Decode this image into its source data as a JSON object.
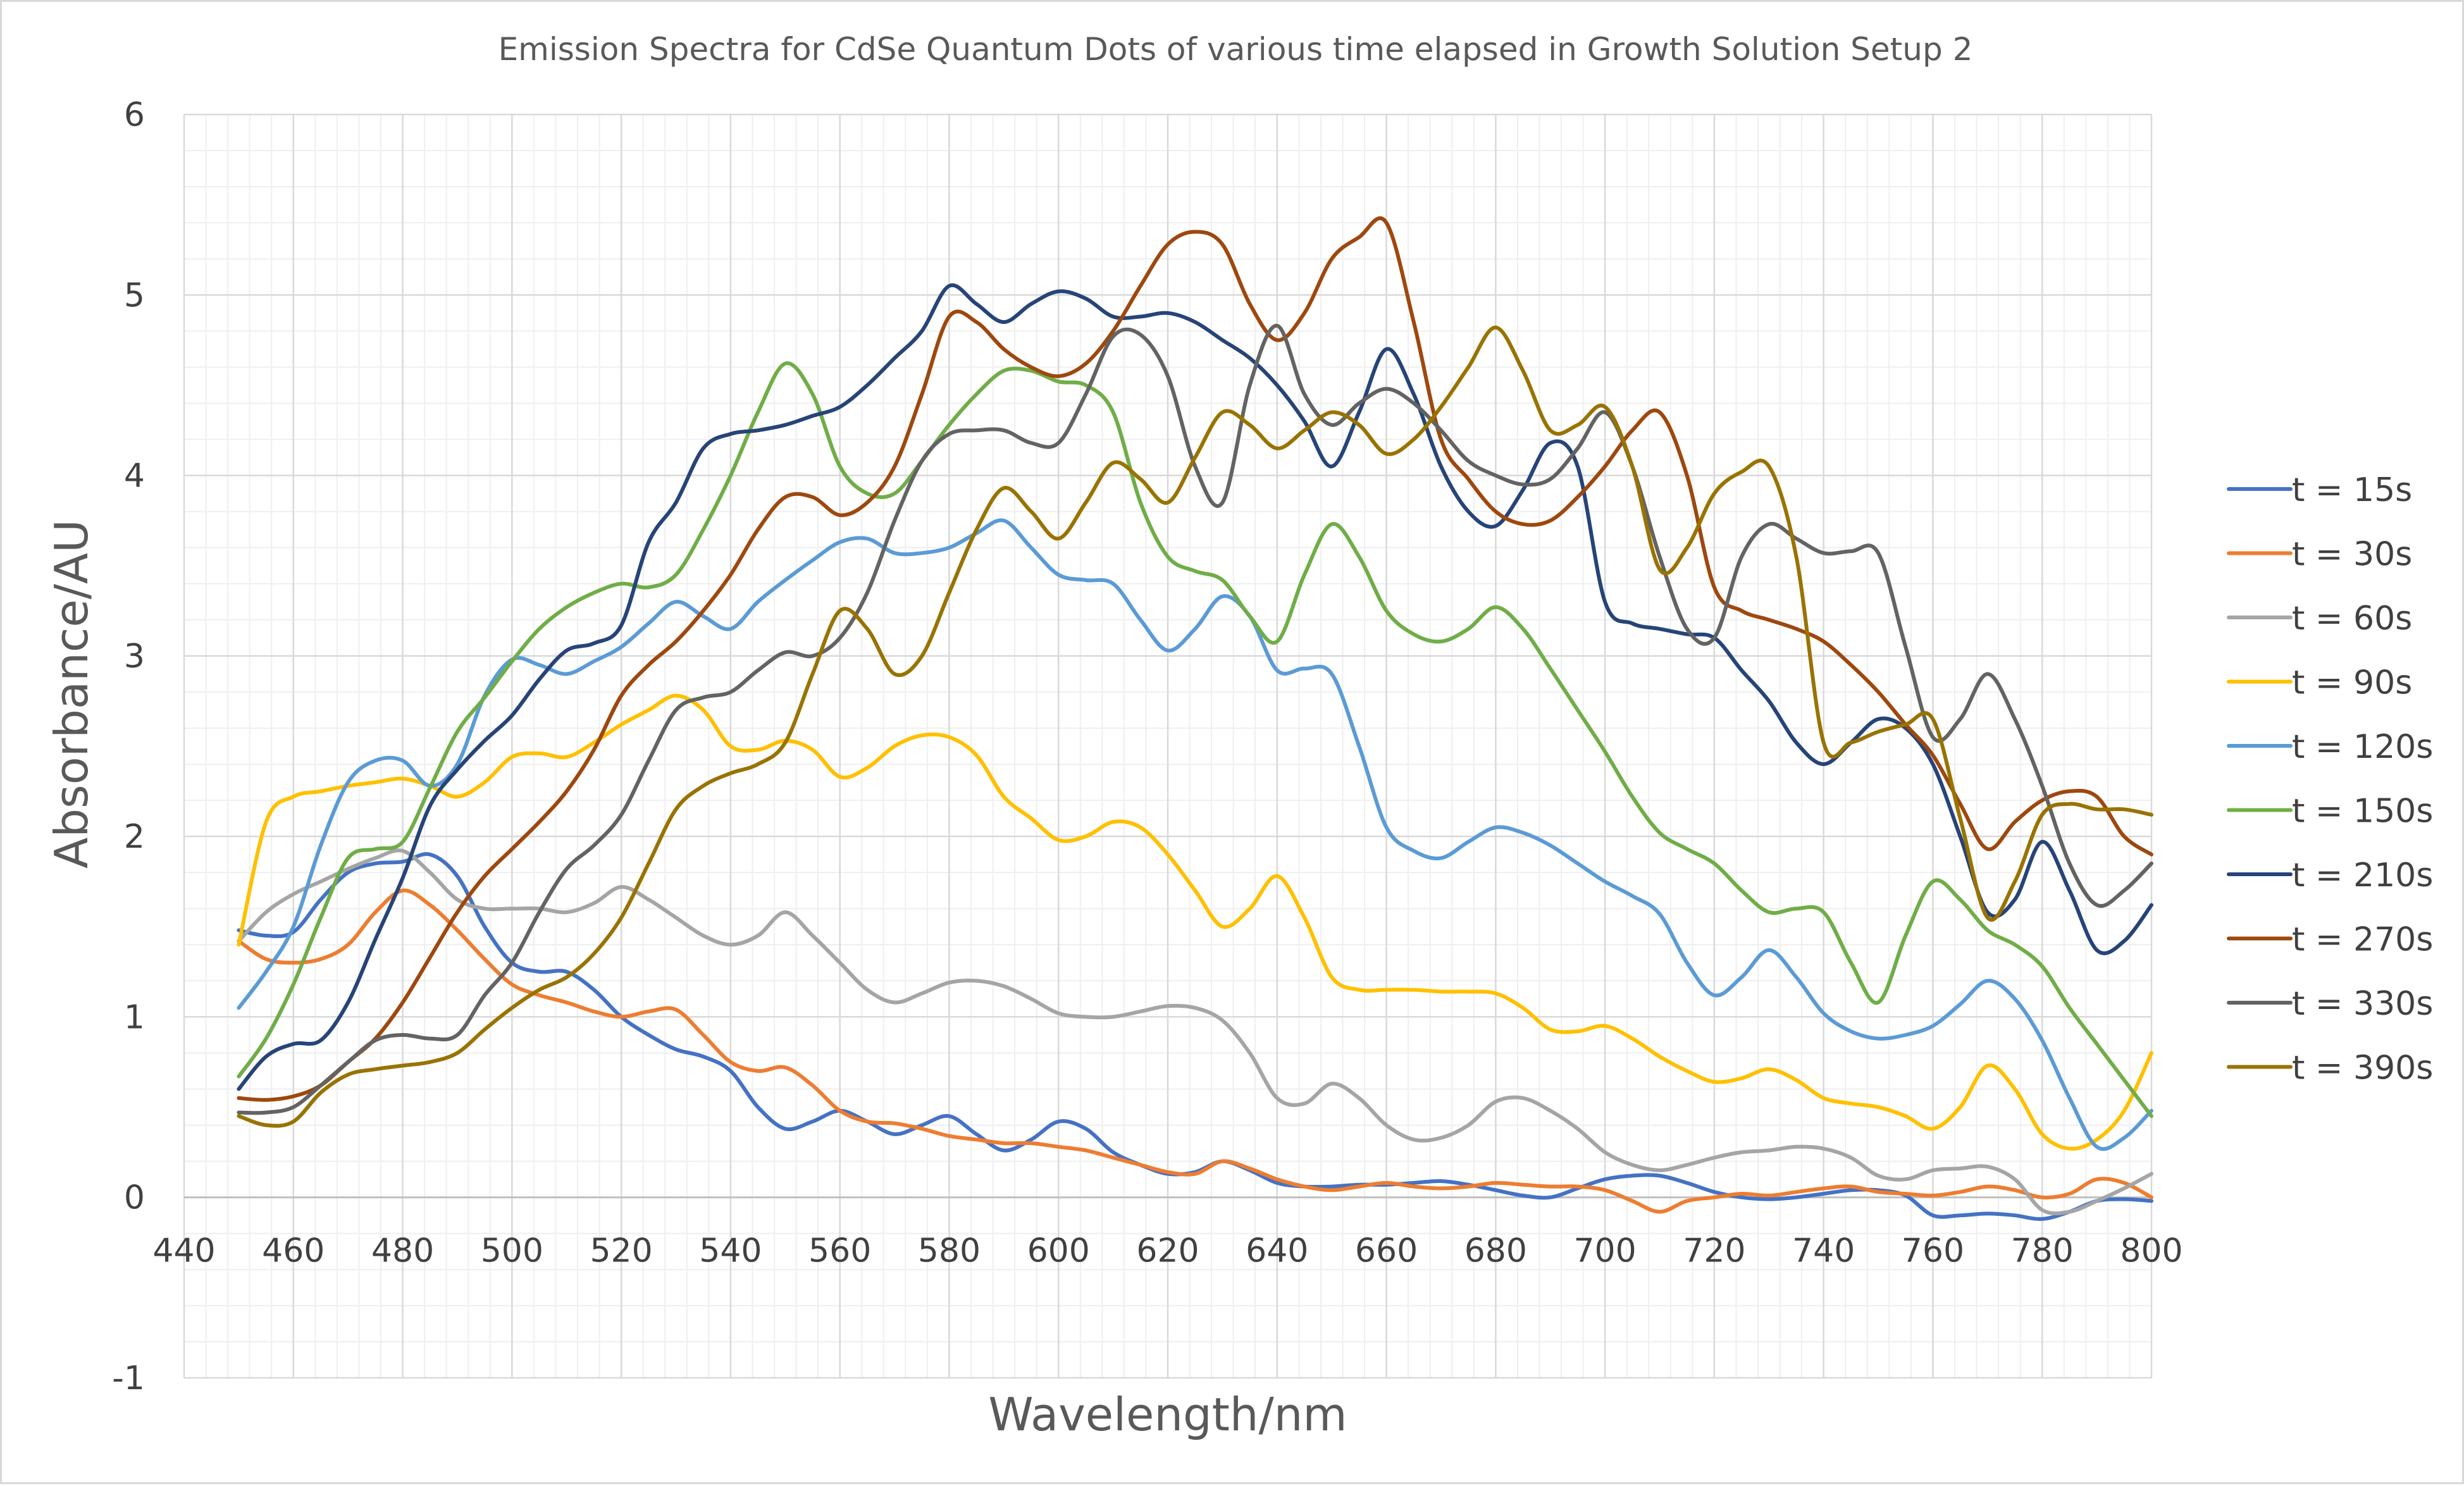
{
  "chart_data": {
    "type": "line",
    "title": "Emission Spectra for CdSe Quantum Dots of various time elapsed in Growth Solution Setup 2",
    "xlabel": "Wavelength/nm",
    "ylabel": "Absorbance/AU",
    "xlim": [
      440,
      800
    ],
    "ylim": [
      -1,
      6
    ],
    "x_ticks": [
      440,
      460,
      480,
      500,
      520,
      540,
      560,
      580,
      600,
      620,
      640,
      660,
      680,
      700,
      720,
      740,
      760,
      780,
      800
    ],
    "y_ticks": [
      -1,
      0,
      1,
      2,
      3,
      4,
      5,
      6
    ],
    "grid": "major and minor",
    "legend_position": "right",
    "x": [
      450,
      455,
      460,
      465,
      470,
      475,
      480,
      485,
      490,
      495,
      500,
      505,
      510,
      515,
      520,
      525,
      530,
      535,
      540,
      545,
      550,
      555,
      560,
      565,
      570,
      575,
      580,
      585,
      590,
      595,
      600,
      605,
      610,
      615,
      620,
      625,
      630,
      635,
      640,
      645,
      650,
      655,
      660,
      665,
      670,
      675,
      680,
      685,
      690,
      695,
      700,
      705,
      710,
      715,
      720,
      725,
      730,
      735,
      740,
      745,
      750,
      755,
      760,
      765,
      770,
      775,
      780,
      785,
      790,
      795,
      800
    ],
    "series": [
      {
        "name": "t = 15s",
        "color": "#4472C4",
        "values": [
          1.48,
          1.45,
          1.47,
          1.65,
          1.8,
          1.85,
          1.86,
          1.9,
          1.78,
          1.5,
          1.3,
          1.25,
          1.25,
          1.15,
          1.0,
          0.9,
          0.82,
          0.78,
          0.7,
          0.5,
          0.38,
          0.42,
          0.48,
          0.42,
          0.35,
          0.4,
          0.45,
          0.35,
          0.26,
          0.32,
          0.42,
          0.38,
          0.25,
          0.18,
          0.13,
          0.14,
          0.2,
          0.15,
          0.08,
          0.06,
          0.06,
          0.07,
          0.07,
          0.08,
          0.09,
          0.07,
          0.04,
          0.01,
          0.0,
          0.05,
          0.1,
          0.12,
          0.12,
          0.08,
          0.03,
          0.0,
          -0.01,
          0.0,
          0.02,
          0.04,
          0.04,
          0.01,
          -0.1,
          -0.1,
          -0.09,
          -0.1,
          -0.12,
          -0.08,
          -0.02,
          -0.01,
          -0.02
        ]
      },
      {
        "name": "t = 30s",
        "color": "#ED7D31",
        "values": [
          1.42,
          1.32,
          1.3,
          1.32,
          1.4,
          1.58,
          1.7,
          1.62,
          1.48,
          1.32,
          1.18,
          1.12,
          1.08,
          1.03,
          1.0,
          1.03,
          1.04,
          0.9,
          0.75,
          0.7,
          0.72,
          0.62,
          0.48,
          0.42,
          0.41,
          0.38,
          0.34,
          0.32,
          0.3,
          0.3,
          0.28,
          0.26,
          0.22,
          0.18,
          0.14,
          0.13,
          0.2,
          0.16,
          0.1,
          0.06,
          0.04,
          0.06,
          0.08,
          0.06,
          0.05,
          0.06,
          0.08,
          0.07,
          0.06,
          0.06,
          0.04,
          -0.02,
          -0.08,
          -0.02,
          0.0,
          0.02,
          0.01,
          0.03,
          0.05,
          0.06,
          0.03,
          0.02,
          0.01,
          0.03,
          0.06,
          0.04,
          0.0,
          0.02,
          0.1,
          0.08,
          0.0
        ]
      },
      {
        "name": "t = 60s",
        "color": "#A5A5A5",
        "values": [
          1.42,
          1.58,
          1.68,
          1.75,
          1.82,
          1.88,
          1.92,
          1.8,
          1.65,
          1.6,
          1.6,
          1.6,
          1.58,
          1.63,
          1.72,
          1.65,
          1.55,
          1.45,
          1.4,
          1.45,
          1.58,
          1.45,
          1.3,
          1.15,
          1.08,
          1.13,
          1.19,
          1.2,
          1.17,
          1.1,
          1.02,
          1.0,
          1.0,
          1.03,
          1.06,
          1.05,
          0.98,
          0.8,
          0.55,
          0.52,
          0.63,
          0.55,
          0.4,
          0.32,
          0.33,
          0.4,
          0.53,
          0.55,
          0.48,
          0.38,
          0.25,
          0.18,
          0.15,
          0.18,
          0.22,
          0.25,
          0.26,
          0.28,
          0.27,
          0.22,
          0.12,
          0.1,
          0.15,
          0.16,
          0.17,
          0.1,
          -0.07,
          -0.08,
          -0.02,
          0.05,
          0.13
        ]
      },
      {
        "name": "t = 90s",
        "color": "#FFC000",
        "values": [
          1.4,
          2.08,
          2.22,
          2.25,
          2.28,
          2.3,
          2.32,
          2.28,
          2.22,
          2.3,
          2.44,
          2.46,
          2.44,
          2.52,
          2.62,
          2.7,
          2.78,
          2.7,
          2.5,
          2.48,
          2.53,
          2.48,
          2.33,
          2.38,
          2.5,
          2.56,
          2.55,
          2.45,
          2.22,
          2.1,
          1.98,
          2.0,
          2.08,
          2.05,
          1.9,
          1.7,
          1.5,
          1.6,
          1.78,
          1.55,
          1.22,
          1.15,
          1.15,
          1.15,
          1.14,
          1.14,
          1.13,
          1.05,
          0.93,
          0.92,
          0.95,
          0.88,
          0.78,
          0.7,
          0.64,
          0.66,
          0.71,
          0.65,
          0.55,
          0.52,
          0.5,
          0.45,
          0.38,
          0.5,
          0.73,
          0.6,
          0.35,
          0.27,
          0.32,
          0.48,
          0.8
        ]
      },
      {
        "name": "t = 120s",
        "color": "#5B9BD5",
        "values": [
          1.05,
          1.25,
          1.5,
          1.95,
          2.3,
          2.42,
          2.42,
          2.28,
          2.4,
          2.78,
          2.98,
          2.95,
          2.9,
          2.97,
          3.05,
          3.18,
          3.3,
          3.22,
          3.15,
          3.3,
          3.42,
          3.53,
          3.63,
          3.65,
          3.57,
          3.57,
          3.6,
          3.68,
          3.75,
          3.6,
          3.45,
          3.42,
          3.4,
          3.2,
          3.03,
          3.15,
          3.33,
          3.22,
          2.92,
          2.93,
          2.9,
          2.5,
          2.05,
          1.92,
          1.88,
          1.97,
          2.05,
          2.02,
          1.95,
          1.85,
          1.75,
          1.67,
          1.57,
          1.3,
          1.12,
          1.22,
          1.37,
          1.22,
          1.02,
          0.92,
          0.88,
          0.9,
          0.95,
          1.07,
          1.2,
          1.1,
          0.87,
          0.55,
          0.28,
          0.33,
          0.48
        ]
      },
      {
        "name": "t = 150s",
        "color": "#70AD47",
        "values": [
          0.67,
          0.88,
          1.18,
          1.55,
          1.88,
          1.93,
          1.97,
          2.27,
          2.58,
          2.77,
          2.97,
          3.15,
          3.27,
          3.35,
          3.4,
          3.38,
          3.45,
          3.7,
          4.0,
          4.35,
          4.62,
          4.45,
          4.05,
          3.9,
          3.9,
          4.08,
          4.28,
          4.45,
          4.58,
          4.58,
          4.52,
          4.5,
          4.35,
          3.85,
          3.55,
          3.47,
          3.42,
          3.22,
          3.08,
          3.45,
          3.73,
          3.55,
          3.25,
          3.12,
          3.08,
          3.15,
          3.27,
          3.15,
          2.93,
          2.7,
          2.47,
          2.22,
          2.02,
          1.93,
          1.85,
          1.7,
          1.58,
          1.6,
          1.58,
          1.3,
          1.08,
          1.45,
          1.75,
          1.65,
          1.48,
          1.4,
          1.28,
          1.05,
          0.85,
          0.65,
          0.45
        ]
      },
      {
        "name": "t = 210s",
        "color": "#264478",
        "values": [
          0.6,
          0.78,
          0.85,
          0.87,
          1.08,
          1.43,
          1.77,
          2.17,
          2.37,
          2.53,
          2.67,
          2.87,
          3.03,
          3.07,
          3.17,
          3.63,
          3.85,
          4.15,
          4.23,
          4.25,
          4.28,
          4.33,
          4.38,
          4.5,
          4.65,
          4.8,
          5.05,
          4.95,
          4.85,
          4.95,
          5.02,
          4.98,
          4.88,
          4.88,
          4.9,
          4.85,
          4.75,
          4.65,
          4.5,
          4.3,
          4.05,
          4.35,
          4.7,
          4.45,
          4.05,
          3.8,
          3.72,
          3.92,
          4.18,
          4.05,
          3.3,
          3.18,
          3.15,
          3.12,
          3.1,
          2.92,
          2.75,
          2.52,
          2.4,
          2.52,
          2.65,
          2.6,
          2.4,
          2.0,
          1.58,
          1.65,
          1.97,
          1.7,
          1.37,
          1.42,
          1.62
        ]
      },
      {
        "name": "t = 270s",
        "color": "#9E480E",
        "values": [
          0.55,
          0.54,
          0.56,
          0.62,
          0.75,
          0.88,
          1.08,
          1.33,
          1.58,
          1.78,
          1.93,
          2.08,
          2.25,
          2.48,
          2.78,
          2.95,
          3.08,
          3.25,
          3.45,
          3.7,
          3.88,
          3.88,
          3.78,
          3.85,
          4.05,
          4.45,
          4.88,
          4.85,
          4.7,
          4.6,
          4.55,
          4.62,
          4.8,
          5.05,
          5.28,
          5.35,
          5.28,
          4.95,
          4.75,
          4.9,
          5.2,
          5.32,
          5.4,
          4.85,
          4.2,
          3.98,
          3.8,
          3.73,
          3.75,
          3.88,
          4.05,
          4.25,
          4.35,
          4.0,
          3.38,
          3.25,
          3.2,
          3.15,
          3.08,
          2.95,
          2.8,
          2.62,
          2.45,
          2.18,
          1.93,
          2.08,
          2.2,
          2.25,
          2.22,
          2.0,
          1.9
        ]
      },
      {
        "name": "t = 330s",
        "color": "#636363",
        "values": [
          0.47,
          0.47,
          0.5,
          0.62,
          0.75,
          0.87,
          0.9,
          0.88,
          0.9,
          1.12,
          1.3,
          1.58,
          1.82,
          1.95,
          2.12,
          2.42,
          2.7,
          2.77,
          2.8,
          2.92,
          3.02,
          3.0,
          3.1,
          3.35,
          3.75,
          4.08,
          4.23,
          4.25,
          4.25,
          4.18,
          4.18,
          4.45,
          4.77,
          4.78,
          4.55,
          4.05,
          3.85,
          4.5,
          4.83,
          4.45,
          4.28,
          4.4,
          4.48,
          4.4,
          4.25,
          4.08,
          4.0,
          3.95,
          3.98,
          4.15,
          4.35,
          4.05,
          3.55,
          3.15,
          3.1,
          3.55,
          3.73,
          3.65,
          3.57,
          3.58,
          3.57,
          3.05,
          2.55,
          2.65,
          2.9,
          2.65,
          2.28,
          1.85,
          1.62,
          1.7,
          1.85
        ]
      },
      {
        "name": "t = 390s",
        "color": "#997300",
        "values": [
          0.45,
          0.4,
          0.42,
          0.58,
          0.68,
          0.71,
          0.73,
          0.75,
          0.8,
          0.93,
          1.05,
          1.15,
          1.22,
          1.35,
          1.55,
          1.85,
          2.15,
          2.28,
          2.35,
          2.4,
          2.52,
          2.9,
          3.25,
          3.15,
          2.9,
          3.0,
          3.35,
          3.7,
          3.93,
          3.8,
          3.65,
          3.85,
          4.07,
          3.98,
          3.85,
          4.1,
          4.35,
          4.28,
          4.15,
          4.25,
          4.35,
          4.28,
          4.12,
          4.2,
          4.38,
          4.6,
          4.82,
          4.58,
          4.25,
          4.28,
          4.38,
          4.05,
          3.48,
          3.6,
          3.9,
          4.02,
          4.05,
          3.55,
          2.52,
          2.52,
          2.58,
          2.62,
          2.65,
          2.1,
          1.55,
          1.75,
          2.12,
          2.18,
          2.15,
          2.15,
          2.12
        ]
      }
    ]
  }
}
